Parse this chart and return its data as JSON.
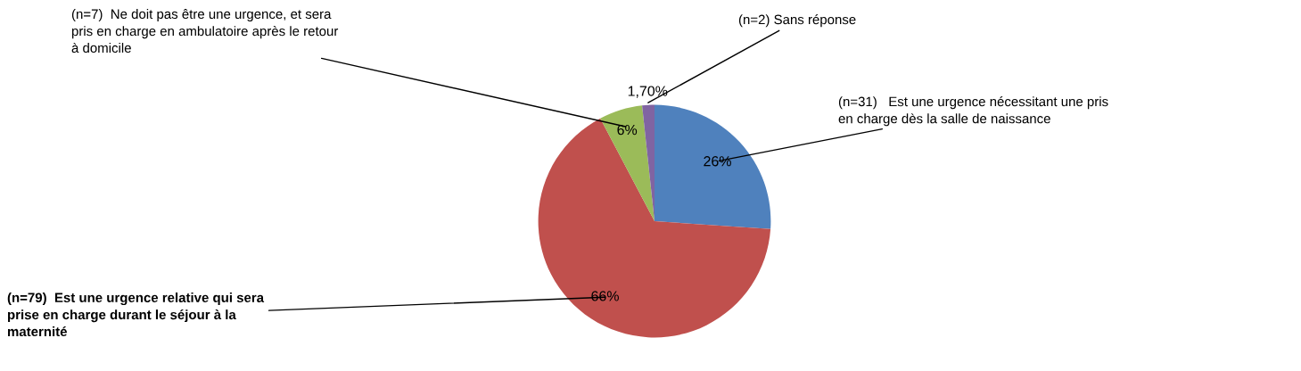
{
  "chart_data": {
    "type": "pie",
    "categories": [
      "(n=31)   Est une urgence nécessitant une pris\nen charge dès la salle de naissance",
      "(n=79)  Est une urgence relative qui sera\nprise en charge durant le séjour à la\nmaternité",
      "(n=7)  Ne doit pas être une urgence, et sera\npris en charge en ambulatoire après le retour\nà domicile",
      "(n=2) Sans réponse"
    ],
    "values": [
      26,
      66,
      6,
      1.7
    ],
    "value_labels": [
      "26%",
      "66%",
      "6%",
      "1,70%"
    ],
    "colors": [
      "#4f81bd",
      "#c0504d",
      "#9bbb59",
      "#8064a2"
    ]
  }
}
